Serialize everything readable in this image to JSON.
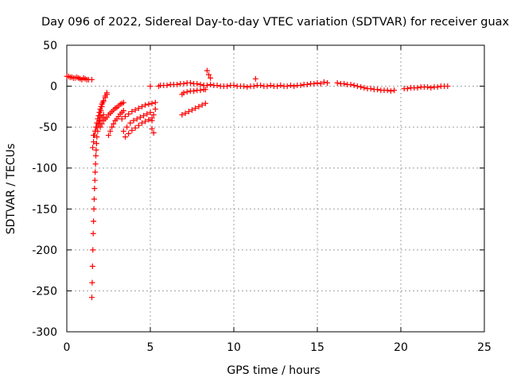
{
  "chart_data": {
    "type": "scatter",
    "title": "Day 096 of 2022, Sidereal Day-to-day VTEC variation (SDTVAR) for receiver guax",
    "xlabel": "GPS time / hours",
    "ylabel": "SDTVAR / TECUs",
    "xlim": [
      0,
      25
    ],
    "ylim": [
      -300,
      50
    ],
    "xticks": [
      0,
      5,
      10,
      15,
      20,
      25
    ],
    "yticks": [
      50,
      0,
      -50,
      -100,
      -150,
      -200,
      -250,
      -300
    ],
    "xtick_labels": [
      "0",
      "5",
      "10",
      "15",
      "20",
      "25"
    ],
    "ytick_labels": [
      "50",
      "0",
      "-50",
      "-100",
      "-150",
      "-200",
      "-250",
      "-300"
    ],
    "grid": true,
    "marker": "+",
    "color": "#ff0000",
    "series": [
      {
        "name": "SDTVAR",
        "x": [
          0.0,
          0.1,
          0.2,
          0.3,
          0.4,
          0.5,
          0.6,
          0.7,
          0.8,
          0.9,
          1.0,
          1.1,
          1.2,
          1.3,
          1.5,
          1.5,
          1.52,
          1.54,
          1.56,
          1.58,
          1.6,
          1.62,
          1.64,
          1.66,
          1.68,
          1.7,
          1.72,
          1.74,
          1.76,
          1.78,
          1.8,
          1.85,
          1.9,
          1.95,
          2.0,
          2.05,
          2.1,
          2.2,
          2.3,
          2.4,
          1.55,
          1.6,
          1.65,
          1.7,
          1.75,
          1.8,
          1.85,
          1.9,
          1.95,
          2.0,
          2.05,
          2.1,
          2.15,
          2.2,
          2.3,
          2.4,
          1.6,
          1.7,
          1.8,
          1.9,
          2.0,
          2.1,
          2.2,
          2.0,
          2.1,
          2.2,
          2.3,
          2.4,
          2.5,
          2.6,
          2.7,
          2.8,
          2.9,
          3.0,
          3.1,
          3.2,
          3.3,
          3.4,
          2.5,
          2.6,
          2.7,
          2.8,
          2.9,
          3.0,
          3.1,
          3.2,
          3.3,
          3.4,
          3.3,
          3.5,
          3.7,
          3.9,
          4.1,
          4.3,
          4.5,
          4.7,
          4.9,
          5.1,
          5.3,
          3.4,
          3.6,
          3.8,
          4.0,
          4.2,
          4.4,
          4.6,
          4.8,
          5.0,
          3.5,
          3.7,
          3.9,
          4.1,
          4.3,
          4.5,
          4.7,
          4.9,
          5.1,
          5.1,
          5.2,
          5.3,
          5.1,
          5.2,
          5.0,
          5.5,
          5.6,
          5.8,
          6.0,
          6.2,
          6.4,
          6.6,
          6.8,
          7.0,
          7.2,
          7.4,
          7.6,
          7.8,
          8.0,
          8.2,
          8.4,
          6.9,
          7.0,
          7.2,
          7.4,
          7.6,
          7.8,
          8.0,
          8.2,
          8.3,
          6.9,
          7.1,
          7.3,
          7.5,
          7.7,
          7.9,
          8.1,
          8.3,
          8.4,
          8.5,
          8.6,
          8.6,
          8.8,
          9.0,
          9.2,
          9.4,
          9.6,
          9.8,
          10.0,
          10.2,
          10.4,
          10.6,
          10.8,
          11.0,
          11.2,
          11.4,
          11.6,
          11.8,
          12.0,
          12.2,
          12.4,
          12.6,
          12.8,
          13.0,
          13.2,
          13.4,
          13.6,
          13.8,
          14.0,
          14.2,
          14.4,
          14.6,
          14.8,
          15.0,
          15.2,
          15.4,
          15.6,
          11.3,
          16.2,
          16.4,
          16.6,
          16.8,
          17.0,
          17.2,
          17.4,
          17.6,
          17.8,
          18.0,
          18.2,
          18.4,
          18.6,
          18.8,
          19.0,
          19.2,
          19.4,
          19.6,
          20.2,
          20.4,
          20.6,
          20.8,
          21.0,
          21.2,
          21.4,
          21.6,
          21.8,
          22.0,
          22.2,
          22.4,
          22.6,
          22.8
        ],
        "y": [
          12,
          12,
          11,
          11,
          10,
          10,
          11,
          10,
          9,
          8,
          10,
          9,
          8,
          8,
          8,
          -258,
          -240,
          -220,
          -200,
          -180,
          -165,
          -150,
          -138,
          -125,
          -115,
          -105,
          -95,
          -85,
          -78,
          -70,
          -62,
          -55,
          -48,
          -42,
          -36,
          -30,
          -25,
          -18,
          -12,
          -8,
          -75,
          -68,
          -60,
          -55,
          -50,
          -45,
          -40,
          -36,
          -32,
          -28,
          -25,
          -22,
          -20,
          -18,
          -14,
          -10,
          -60,
          -55,
          -50,
          -46,
          -42,
          -38,
          -35,
          -50,
          -46,
          -42,
          -40,
          -38,
          -35,
          -33,
          -31,
          -29,
          -27,
          -26,
          -24,
          -22,
          -21,
          -20,
          -60,
          -55,
          -50,
          -46,
          -42,
          -40,
          -37,
          -34,
          -32,
          -30,
          -40,
          -37,
          -34,
          -31,
          -29,
          -27,
          -25,
          -23,
          -22,
          -21,
          -20,
          -55,
          -50,
          -45,
          -42,
          -40,
          -38,
          -36,
          -34,
          -32,
          -62,
          -58,
          -54,
          -51,
          -48,
          -45,
          -43,
          -41,
          -39,
          -42,
          -35,
          -28,
          -52,
          -57,
          0,
          0,
          1,
          1,
          1,
          2,
          2,
          2,
          3,
          3,
          4,
          4,
          3,
          3,
          2,
          1,
          1,
          -10,
          -8,
          -7,
          -6,
          -6,
          -5,
          -5,
          -4,
          -4,
          -35,
          -33,
          -31,
          -29,
          -27,
          -25,
          -23,
          -21,
          19,
          14,
          10,
          2,
          1,
          1,
          0,
          0,
          0,
          1,
          1,
          0,
          0,
          0,
          -1,
          0,
          0,
          1,
          1,
          0,
          0,
          1,
          0,
          0,
          1,
          0,
          0,
          1,
          0,
          1,
          1,
          2,
          2,
          3,
          3,
          4,
          3,
          5,
          4,
          9,
          4,
          3,
          3,
          2,
          2,
          1,
          0,
          -1,
          -2,
          -3,
          -3,
          -4,
          -4,
          -5,
          -5,
          -5,
          -6,
          -5,
          -3,
          -3,
          -2,
          -2,
          -2,
          -1,
          -1,
          -1,
          -2,
          -1,
          -1,
          0,
          0,
          0
        ]
      }
    ]
  }
}
